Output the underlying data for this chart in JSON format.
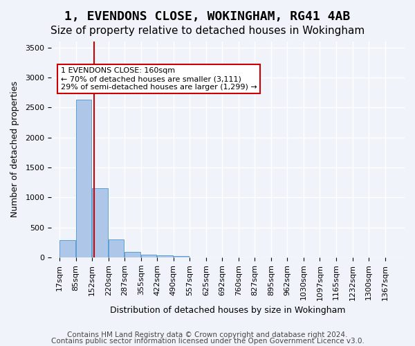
{
  "title1": "1, EVENDONS CLOSE, WOKINGHAM, RG41 4AB",
  "title2": "Size of property relative to detached houses in Wokingham",
  "xlabel": "Distribution of detached houses by size in Wokingham",
  "ylabel": "Number of detached properties",
  "bin_labels": [
    "17sqm",
    "85sqm",
    "152sqm",
    "220sqm",
    "287sqm",
    "355sqm",
    "422sqm",
    "490sqm",
    "557sqm",
    "625sqm",
    "692sqm",
    "760sqm",
    "827sqm",
    "895sqm",
    "962sqm",
    "1030sqm",
    "1097sqm",
    "1165sqm",
    "1232sqm",
    "1300sqm",
    "1367sqm"
  ],
  "bin_edges": [
    17,
    85,
    152,
    220,
    287,
    355,
    422,
    490,
    557,
    625,
    692,
    760,
    827,
    895,
    962,
    1030,
    1097,
    1165,
    1232,
    1300,
    1367
  ],
  "bar_heights": [
    290,
    2630,
    1150,
    300,
    90,
    45,
    30,
    25,
    5,
    2,
    1,
    1,
    0,
    0,
    0,
    0,
    0,
    0,
    0,
    0
  ],
  "bar_color": "#aec6e8",
  "bar_edge_color": "#5a9fd4",
  "vline_x": 160,
  "vline_color": "#cc0000",
  "annotation_text": "1 EVENDONS CLOSE: 160sqm\n← 70% of detached houses are smaller (3,111)\n29% of semi-detached houses are larger (1,299) →",
  "annotation_box_color": "white",
  "annotation_box_edge_color": "#cc0000",
  "ylim": [
    0,
    3600
  ],
  "yticks": [
    0,
    500,
    1000,
    1500,
    2000,
    2500,
    3000,
    3500
  ],
  "footer1": "Contains HM Land Registry data © Crown copyright and database right 2024.",
  "footer2": "Contains public sector information licensed under the Open Government Licence v3.0.",
  "bg_color": "#f0f4fa",
  "grid_color": "white",
  "title1_fontsize": 13,
  "title2_fontsize": 11,
  "axis_label_fontsize": 9,
  "tick_fontsize": 8,
  "footer_fontsize": 7.5
}
